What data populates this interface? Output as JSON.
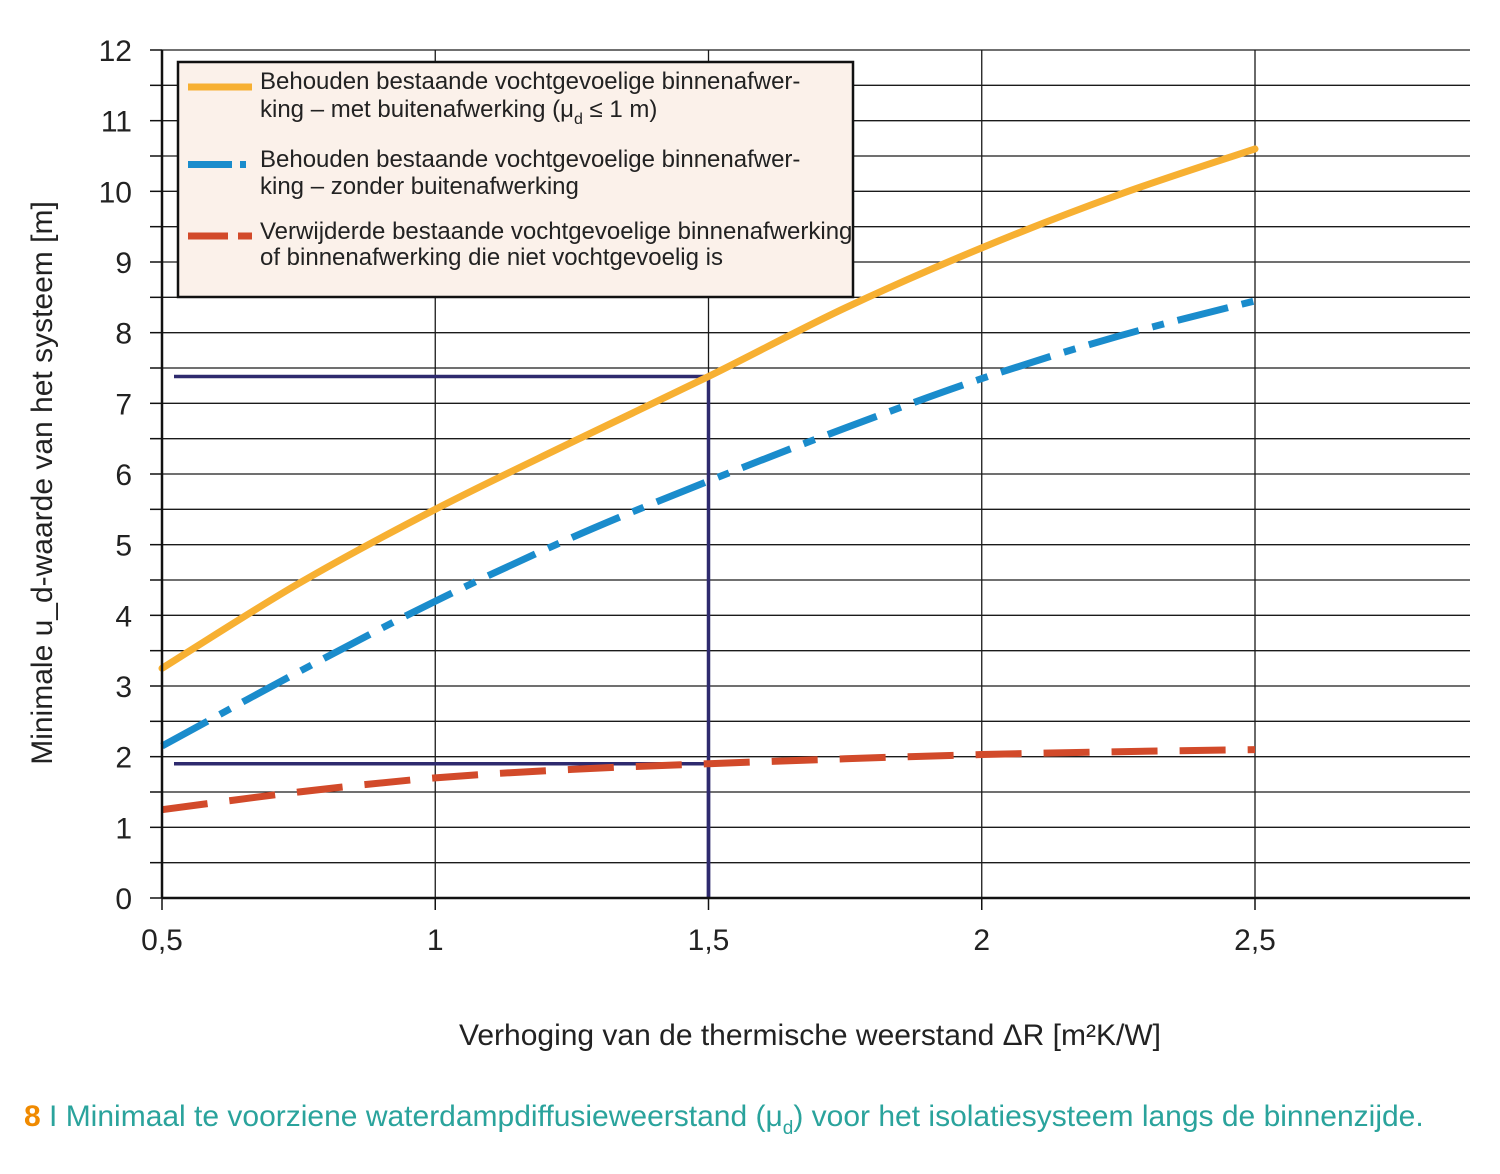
{
  "chart_data": {
    "type": "line",
    "xlabel": "Verhoging van de thermische weerstand ΔR [m²K/W]",
    "ylabel": "Minimale u_d-waarde van het systeem [m]",
    "xlim": [
      0.5,
      2.9
    ],
    "ylim": [
      0,
      12
    ],
    "x_ticks": [
      "0,5",
      "1",
      "1,5",
      "2",
      "2,5"
    ],
    "y_ticks": [
      "0",
      "1",
      "2",
      "3",
      "4",
      "5",
      "6",
      "7",
      "8",
      "9",
      "10",
      "11",
      "12"
    ],
    "grid": true,
    "legend_position": "top-left",
    "series": [
      {
        "name": "Behouden bestaande vochtgevoelige binnenafwerking – met buitenafwerking (μd ≤ 1 m)",
        "legend_lines": [
          "Behouden bestaande vochtgevoelige binnenafwer-",
          "king – met buitenafwerking (μ",
          "d",
          " ≤ 1 m)"
        ],
        "color": "#f7b032",
        "style": "solid",
        "x": [
          0.5,
          0.75,
          1.0,
          1.25,
          1.5,
          1.75,
          2.0,
          2.25,
          2.5
        ],
        "y": [
          3.25,
          4.45,
          5.5,
          6.45,
          7.38,
          8.35,
          9.2,
          9.95,
          10.6
        ]
      },
      {
        "name": "Behouden bestaande vochtgevoelige binnenafwerking – zonder buitenafwerking",
        "legend_lines": [
          "Behouden bestaande vochtgevoelige binnenafwer-",
          "king – zonder buitenafwerking"
        ],
        "color": "#1a8ccc",
        "style": "dashdot",
        "x": [
          0.5,
          0.75,
          1.0,
          1.25,
          1.5,
          1.75,
          2.0,
          2.25,
          2.5
        ],
        "y": [
          2.15,
          3.2,
          4.2,
          5.1,
          5.9,
          6.65,
          7.35,
          7.95,
          8.45
        ]
      },
      {
        "name": "Verwijderde bestaande vochtgevoelige binnenafwerking of binnenafwerking die niet vochtgevoelig is",
        "legend_lines": [
          "Verwijderde bestaande vochtgevoelige binnenafwerking",
          "of binnenafwerking die niet vochtgevoelig is"
        ],
        "color": "#d24a2a",
        "style": "dashed",
        "x": [
          0.5,
          0.75,
          1.0,
          1.25,
          1.5,
          1.75,
          2.0,
          2.25,
          2.5
        ],
        "y": [
          1.25,
          1.5,
          1.7,
          1.82,
          1.9,
          1.97,
          2.03,
          2.07,
          2.1
        ]
      }
    ],
    "reference_lines": [
      {
        "x": 1.5,
        "y": 7.38,
        "color": "#2e2a6e"
      },
      {
        "x": 1.5,
        "y": 1.9,
        "color": "#2e2a6e"
      }
    ]
  },
  "caption": {
    "number": "8",
    "text_before": " I Minimaal te voorziene waterdampdiffusieweerstand (μ",
    "sub": "d",
    "text_after": ") voor het isolatiesysteem langs de binnenzijde."
  }
}
